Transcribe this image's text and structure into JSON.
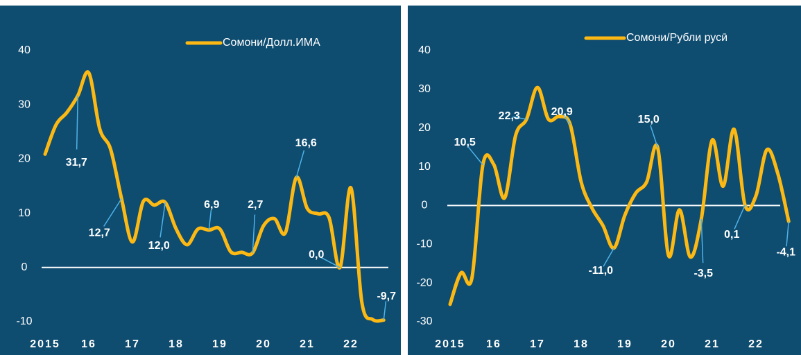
{
  "chart_data": [
    {
      "type": "line",
      "x": [
        2015,
        2015.25,
        2015.5,
        2015.75,
        2016,
        2016.25,
        2016.5,
        2016.75,
        2017,
        2017.25,
        2017.5,
        2017.75,
        2018,
        2018.25,
        2018.5,
        2018.75,
        2019,
        2019.25,
        2019.5,
        2019.75,
        2020,
        2020.25,
        2020.5,
        2020.75,
        2021,
        2021.25,
        2021.5,
        2021.75,
        2022,
        2022.25,
        2022.5,
        2022.75
      ],
      "series": [
        {
          "name": "Сомони/Долл.ИМА",
          "color": "#fdb913",
          "values": [
            20.9,
            26.3,
            28.6,
            31.7,
            35.9,
            25.6,
            21.8,
            12.7,
            4.7,
            12.2,
            11.5,
            12.0,
            7.1,
            4.2,
            7.1,
            6.9,
            7.1,
            2.9,
            2.8,
            2.7,
            7.7,
            9.0,
            6.4,
            16.6,
            10.9,
            9.9,
            9.2,
            0.0,
            14.7,
            -6.4,
            -9.6,
            -9.7
          ],
          "value_labels": [
            null,
            null,
            null,
            "31,7",
            null,
            null,
            null,
            "12,7",
            null,
            null,
            null,
            "12,0",
            null,
            null,
            null,
            "6,9",
            null,
            null,
            null,
            "2,7",
            null,
            null,
            null,
            "16,6",
            null,
            null,
            null,
            "0,0",
            null,
            null,
            null,
            "-9,7"
          ]
        }
      ],
      "xlim": [
        2014.8,
        2023.0
      ],
      "xticks": [
        2015,
        {
          "value": 2016,
          "label": "16"
        },
        {
          "value": 2017,
          "label": "17"
        },
        {
          "value": 2018,
          "label": "18"
        },
        {
          "value": 2019,
          "label": "19"
        },
        {
          "value": 2020,
          "label": "20"
        },
        {
          "value": 2021,
          "label": "21"
        },
        {
          "value": 2022,
          "label": "22"
        }
      ],
      "ylim": [
        -10,
        40
      ],
      "yticks": [
        -10,
        0,
        10,
        20,
        30,
        40
      ],
      "grid": false
    },
    {
      "type": "line",
      "x": [
        2015,
        2015.25,
        2015.5,
        2015.75,
        2016,
        2016.25,
        2016.5,
        2016.75,
        2017,
        2017.25,
        2017.5,
        2017.75,
        2018,
        2018.25,
        2018.5,
        2018.75,
        2019,
        2019.25,
        2019.5,
        2019.75,
        2020,
        2020.25,
        2020.5,
        2020.75,
        2021,
        2021.25,
        2021.5,
        2021.75,
        2022,
        2022.25,
        2022.5,
        2022.75
      ],
      "series": [
        {
          "name": "Сомони/Рубли русӣ",
          "color": "#fdb913",
          "values": [
            -25.5,
            -17.4,
            -18.7,
            10.5,
            10.6,
            2.0,
            18.1,
            22.3,
            30.5,
            22.3,
            23.0,
            20.9,
            6.1,
            -0.7,
            -5.2,
            -11.0,
            -2.5,
            3.2,
            6.1,
            15.0,
            -12.9,
            -1.1,
            -13.3,
            -3.5,
            16.9,
            5.0,
            19.7,
            0.1,
            2.5,
            14.4,
            8.3,
            -4.1
          ],
          "value_labels": [
            null,
            null,
            null,
            "10,5",
            null,
            null,
            null,
            "22,3",
            null,
            null,
            null,
            "20,9",
            null,
            null,
            null,
            "-11,0",
            null,
            null,
            null,
            "15,0",
            null,
            null,
            null,
            "-3,5",
            null,
            null,
            null,
            "0,1",
            null,
            null,
            null,
            "-4,1"
          ]
        }
      ],
      "xlim": [
        2014.8,
        2023.0
      ],
      "xticks": [
        2015,
        {
          "value": 2016,
          "label": "16"
        },
        {
          "value": 2017,
          "label": "17"
        },
        {
          "value": 2018,
          "label": "18"
        },
        {
          "value": 2019,
          "label": "19"
        },
        {
          "value": 2020,
          "label": "20"
        },
        {
          "value": 2021,
          "label": "21"
        },
        {
          "value": 2022,
          "label": "22"
        }
      ],
      "ylim": [
        -30,
        40
      ],
      "yticks": [
        -30,
        -20,
        -10,
        0,
        10,
        20,
        30,
        40
      ],
      "grid": false
    }
  ]
}
